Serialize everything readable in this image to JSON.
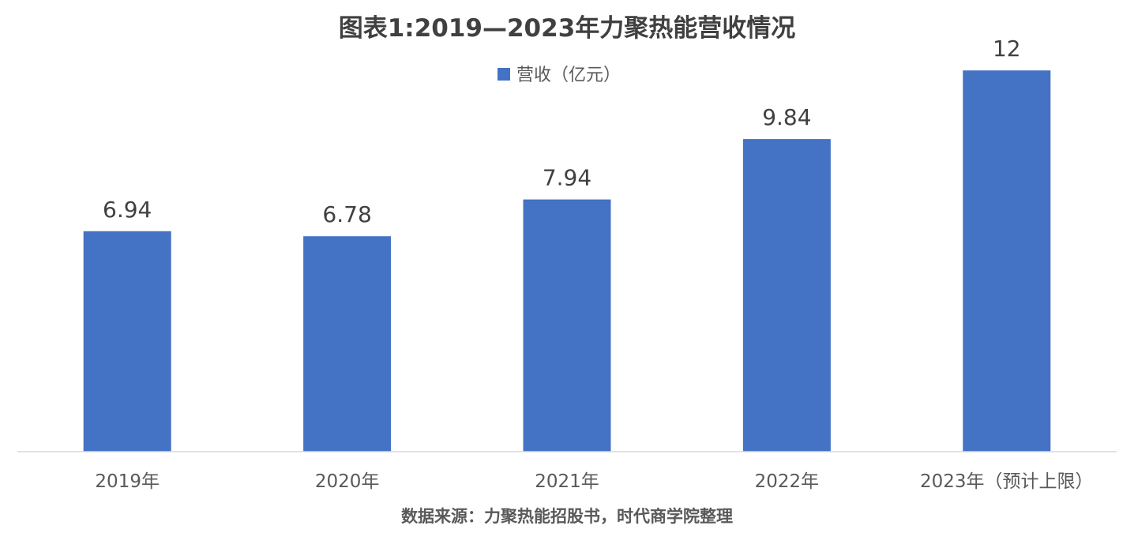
{
  "chart_data": {
    "type": "bar",
    "title": "图表1:2019—2023年力聚热能营收情况",
    "categories": [
      "2019年",
      "2020年",
      "2021年",
      "2022年",
      "2023年（预计上限）"
    ],
    "series": [
      {
        "name": "营收（亿元）",
        "values": [
          6.94,
          6.78,
          7.94,
          9.84,
          12
        ],
        "labels": [
          "6.94",
          "6.78",
          "7.94",
          "9.84",
          "12"
        ],
        "color": "#4472C4"
      }
    ],
    "ylim": [
      0,
      13
    ],
    "grid": false,
    "legend_position": "top-center",
    "source": "数据来源：力聚热能招股书，时代商学院整理",
    "axis_color": "#D9D9D9"
  }
}
